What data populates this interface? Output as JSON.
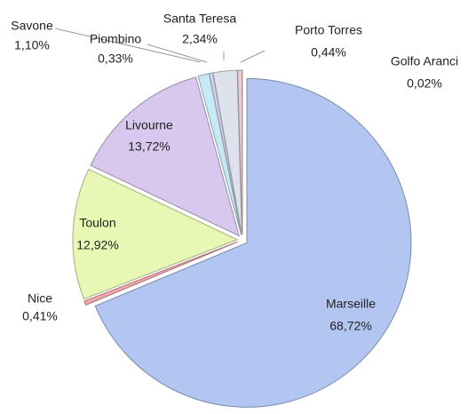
{
  "chart_data": {
    "type": "pie",
    "categories": [
      "Marseille",
      "Nice",
      "Toulon",
      "Livourne",
      "Savone",
      "Piombino",
      "Santa Teresa",
      "Porto Torres",
      "Golfo Aranci"
    ],
    "values": [
      68.72,
      0.41,
      12.92,
      13.72,
      1.1,
      0.33,
      2.34,
      0.44,
      0.02
    ],
    "value_labels": [
      "68,72%",
      "0,41%",
      "12,92%",
      "13,72%",
      "1,10%",
      "0,33%",
      "2,34%",
      "0,44%",
      "0,02%"
    ],
    "colors": [
      "#b3c6f2",
      "#f2a7ab",
      "#e8f8b4",
      "#d8c8ee",
      "#c5eaf4",
      "#d9d2ee",
      "#dde2ec",
      "#eccbd8",
      "#f2d9b3"
    ]
  }
}
